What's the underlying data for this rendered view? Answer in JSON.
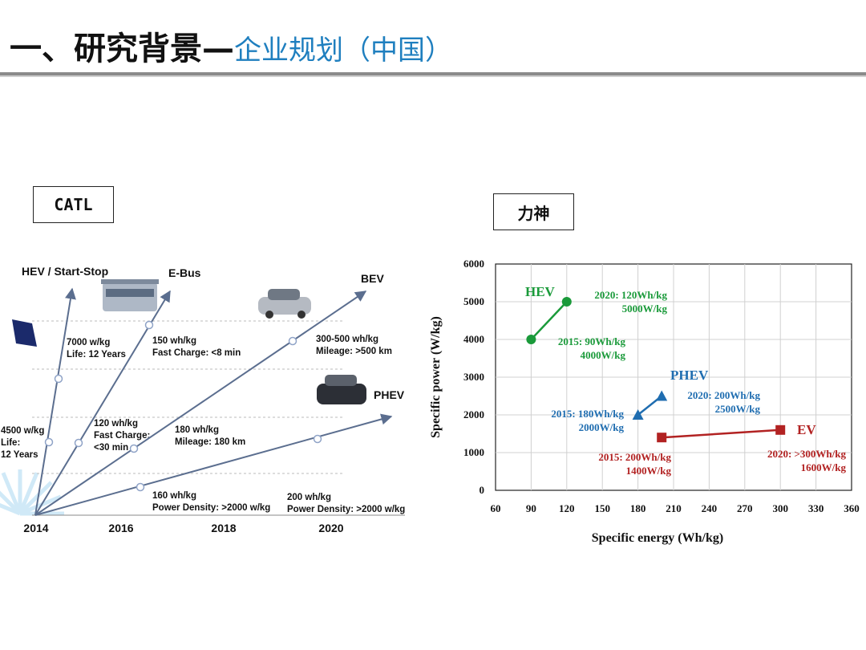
{
  "title": {
    "main": "一、研究背景",
    "dash": "—",
    "sub": "企业规划（中国）"
  },
  "labels": {
    "catl": "CATL",
    "lishen": "力神"
  },
  "colors": {
    "title_sub": "#1f7fbf",
    "hev": "#1a9a3a",
    "phev": "#1f6db0",
    "ev": "#b22222",
    "arrow": "#5b6e8f"
  },
  "chart_data": [
    {
      "type": "line",
      "source": "CATL",
      "years": [
        "2014",
        "2016",
        "2018",
        "2020"
      ],
      "series": [
        {
          "name": "HEV / Start-Stop",
          "points": [
            {
              "year": "2014",
              "label": [
                "4500 w/kg",
                "Life:",
                "12 Years"
              ]
            },
            {
              "year": "2016",
              "label": [
                "7000 w/kg",
                "Life: 12 Years"
              ]
            }
          ]
        },
        {
          "name": "E-Bus",
          "points": [
            {
              "year": "2016",
              "label": [
                "120 wh/kg",
                "Fast Charge:",
                "<30 min"
              ]
            },
            {
              "year": "2018",
              "label": [
                "150 wh/kg",
                "Fast Charge: <8 min"
              ]
            }
          ]
        },
        {
          "name": "BEV",
          "points": [
            {
              "year": "2018",
              "label": [
                "180 wh/kg",
                "Mileage: 180 km"
              ]
            },
            {
              "year": "2020",
              "label": [
                "300-500 wh/kg",
                "Mileage: >500 km"
              ]
            }
          ]
        },
        {
          "name": "PHEV",
          "points": [
            {
              "year": "2016",
              "label": [
                "160 wh/kg",
                "Power Density: >2000 w/kg"
              ]
            },
            {
              "year": "2020",
              "label": [
                "200 wh/kg",
                "Power Density: >2000 w/kg"
              ]
            }
          ]
        }
      ]
    },
    {
      "type": "scatter",
      "source": "力神",
      "xlabel": "Specific energy (Wh/kg)",
      "ylabel": "Specific power (W/kg)",
      "xlim": [
        60,
        360
      ],
      "ylim": [
        0,
        6000
      ],
      "xticks": [
        60,
        90,
        120,
        150,
        180,
        210,
        240,
        270,
        300,
        330,
        360
      ],
      "yticks": [
        0,
        1000,
        2000,
        3000,
        4000,
        5000,
        6000
      ],
      "grid": true,
      "series": [
        {
          "name": "HEV",
          "marker": "circle",
          "color": "#1a9a3a",
          "points": [
            {
              "x": 90,
              "y": 4000,
              "label": [
                "2015: 90Wh/kg",
                "4000W/kg"
              ]
            },
            {
              "x": 120,
              "y": 5000,
              "label": [
                "2020: 120Wh/kg",
                "5000W/kg"
              ]
            }
          ]
        },
        {
          "name": "PHEV",
          "marker": "triangle",
          "color": "#1f6db0",
          "points": [
            {
              "x": 180,
              "y": 2000,
              "label": [
                "2015: 180Wh/kg",
                "2000W/kg"
              ]
            },
            {
              "x": 200,
              "y": 2500,
              "label": [
                "2020: 200Wh/kg",
                "2500W/kg"
              ]
            }
          ]
        },
        {
          "name": "EV",
          "marker": "square",
          "color": "#b22222",
          "points": [
            {
              "x": 200,
              "y": 1400,
              "label": [
                "2015: 200Wh/kg",
                "1400W/kg"
              ]
            },
            {
              "x": 300,
              "y": 1600,
              "label": [
                "2020: >300Wh/kg",
                "1600W/kg"
              ]
            }
          ]
        }
      ]
    }
  ]
}
